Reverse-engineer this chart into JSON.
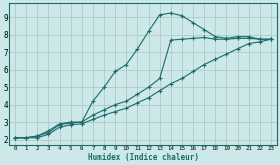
{
  "background_color": "#cce8e8",
  "grid_color": "#b0c8c8",
  "line_color": "#1a6b6b",
  "xlabel": "Humidex (Indice chaleur)",
  "xlim": [
    -0.5,
    23.5
  ],
  "ylim": [
    1.7,
    9.8
  ],
  "xticks": [
    0,
    1,
    2,
    3,
    4,
    5,
    6,
    7,
    8,
    9,
    10,
    11,
    12,
    13,
    14,
    15,
    16,
    17,
    18,
    19,
    20,
    21,
    22,
    23
  ],
  "yticks": [
    2,
    3,
    4,
    5,
    6,
    7,
    8,
    9
  ],
  "curve1_x": [
    0,
    1,
    2,
    3,
    4,
    5,
    6,
    7,
    8,
    9,
    10,
    11,
    12,
    13,
    14,
    15,
    16,
    17,
    18,
    19,
    20,
    21,
    22,
    23
  ],
  "curve1_y": [
    2.1,
    2.1,
    2.2,
    2.5,
    2.9,
    3.0,
    3.0,
    4.2,
    5.0,
    5.9,
    6.3,
    7.2,
    8.2,
    9.15,
    9.25,
    9.1,
    8.7,
    8.3,
    7.9,
    7.8,
    7.9,
    7.9,
    7.75,
    7.75
  ],
  "curve2_x": [
    0,
    1,
    2,
    3,
    4,
    5,
    6,
    7,
    8,
    9,
    10,
    11,
    12,
    13,
    14,
    15,
    16,
    17,
    18,
    19,
    20,
    21,
    22,
    23
  ],
  "curve2_y": [
    2.1,
    2.1,
    2.2,
    2.4,
    2.85,
    2.95,
    3.0,
    3.4,
    3.7,
    4.0,
    4.2,
    4.6,
    5.0,
    5.5,
    7.7,
    7.75,
    7.8,
    7.85,
    7.75,
    7.75,
    7.8,
    7.8,
    7.75,
    7.75
  ],
  "curve3_x": [
    0,
    1,
    2,
    3,
    4,
    5,
    6,
    7,
    8,
    9,
    10,
    11,
    12,
    13,
    14,
    15,
    16,
    17,
    18,
    19,
    20,
    21,
    22,
    23
  ],
  "curve3_y": [
    2.1,
    2.1,
    2.1,
    2.3,
    2.7,
    2.85,
    2.9,
    3.15,
    3.4,
    3.6,
    3.8,
    4.1,
    4.4,
    4.8,
    5.2,
    5.5,
    5.9,
    6.3,
    6.6,
    6.9,
    7.2,
    7.5,
    7.6,
    7.75
  ]
}
